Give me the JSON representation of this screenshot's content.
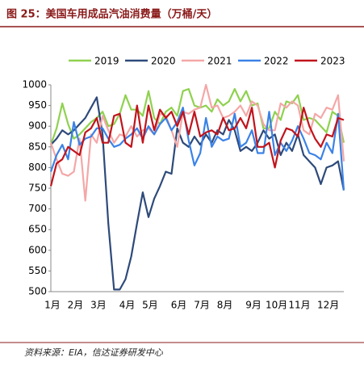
{
  "chart_data": {
    "type": "line",
    "title": "图 25：美国车用成品汽油消费量（万桶/天）",
    "source": "资料来源：EIA，信达证券研发中心",
    "categories": [
      "1月",
      null,
      null,
      null,
      "2月",
      null,
      null,
      null,
      "3月",
      null,
      null,
      null,
      null,
      "4月",
      null,
      null,
      null,
      "5月",
      null,
      null,
      null,
      null,
      "6月",
      null,
      null,
      null,
      "7月",
      null,
      null,
      null,
      "8月",
      null,
      null,
      null,
      null,
      "9月",
      null,
      null,
      null,
      "10月",
      null,
      null,
      null,
      "11月",
      null,
      null,
      null,
      null,
      "12月",
      null,
      null,
      null
    ],
    "ylim": [
      500,
      1000
    ],
    "yticks": [
      500,
      550,
      600,
      650,
      700,
      750,
      800,
      850,
      900,
      950,
      1000
    ],
    "grid": false,
    "legend": "top",
    "series": [
      {
        "name": "2019",
        "color": "#8fd14f",
        "values": [
          855,
          895,
          955,
          905,
          870,
          880,
          895,
          910,
          920,
          935,
          900,
          905,
          930,
          975,
          940,
          940,
          925,
          985,
          920,
          905,
          935,
          945,
          925,
          985,
          990,
          950,
          945,
          950,
          935,
          965,
          950,
          960,
          990,
          960,
          985,
          950,
          955,
          895,
          895,
          935,
          915,
          960,
          955,
          975,
          915,
          920,
          915,
          900,
          885,
          935,
          925,
          860
        ]
      },
      {
        "name": "2020",
        "color": "#2e4a7a",
        "values": [
          855,
          870,
          890,
          880,
          890,
          905,
          920,
          945,
          970,
          880,
          665,
          505,
          505,
          530,
          585,
          665,
          740,
          680,
          725,
          755,
          790,
          785,
          895,
          860,
          850,
          875,
          855,
          880,
          860,
          890,
          880,
          915,
          890,
          840,
          850,
          840,
          860,
          890,
          870,
          880,
          830,
          860,
          840,
          880,
          830,
          815,
          800,
          760,
          800,
          805,
          815,
          745
        ]
      },
      {
        "name": "2021",
        "color": "#f4a7a7",
        "values": [
          860,
          820,
          785,
          780,
          790,
          870,
          720,
          880,
          860,
          925,
          890,
          860,
          880,
          875,
          900,
          875,
          890,
          895,
          880,
          930,
          925,
          890,
          850,
          935,
          930,
          940,
          945,
          1000,
          945,
          950,
          920,
          925,
          935,
          950,
          925,
          960,
          950,
          905,
          890,
          890,
          955,
          945,
          960,
          950,
          890,
          880,
          930,
          920,
          945,
          940,
          975,
          815
        ]
      },
      {
        "name": "2022",
        "color": "#3b82e6",
        "values": [
          790,
          830,
          855,
          820,
          910,
          855,
          870,
          875,
          895,
          895,
          870,
          850,
          855,
          870,
          880,
          895,
          870,
          900,
          880,
          905,
          920,
          890,
          910,
          945,
          865,
          805,
          835,
          920,
          850,
          875,
          865,
          870,
          930,
          850,
          860,
          890,
          835,
          835,
          935,
          830,
          860,
          840,
          865,
          900,
          870,
          835,
          830,
          820,
          860,
          835,
          930,
          745
        ]
      },
      {
        "name": "2023",
        "color": "#c0141c",
        "values": [
          755,
          810,
          820,
          850,
          840,
          830,
          885,
          895,
          920,
          860,
          860,
          925,
          930,
          860,
          850,
          950,
          860,
          950,
          890,
          940,
          920,
          935,
          900,
          935,
          880,
          935,
          875,
          885,
          890,
          880,
          920,
          890,
          895,
          920,
          895,
          945,
          850,
          850,
          860,
          800,
          865,
          895,
          890,
          875,
          945,
          900,
          870,
          850,
          880,
          875,
          920,
          915
        ]
      }
    ]
  }
}
